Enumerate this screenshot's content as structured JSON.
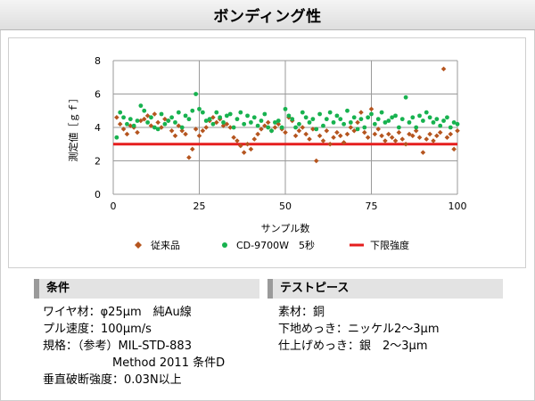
{
  "title": "ボンディング性",
  "chart_data": {
    "type": "scatter",
    "xlabel": "サンプル数",
    "ylabel": "測定値［ｇｆ］",
    "xlim": [
      0,
      100
    ],
    "ylim": [
      0,
      8
    ],
    "xticks": [
      0,
      25,
      50,
      75,
      100
    ],
    "yticks": [
      0,
      2,
      4,
      6,
      8
    ],
    "grid": true,
    "legend_position": "bottom",
    "series": [
      {
        "name": "従来品",
        "color": "#b5551f",
        "marker": "diamond",
        "x": [
          1,
          2,
          3,
          4,
          5,
          6,
          7,
          8,
          9,
          10,
          11,
          12,
          13,
          14,
          15,
          16,
          17,
          18,
          19,
          20,
          21,
          22,
          23,
          24,
          25,
          26,
          27,
          28,
          29,
          30,
          31,
          32,
          33,
          34,
          35,
          36,
          37,
          38,
          39,
          40,
          41,
          42,
          43,
          44,
          45,
          46,
          47,
          48,
          49,
          50,
          51,
          52,
          53,
          54,
          55,
          56,
          57,
          58,
          59,
          60,
          61,
          62,
          63,
          64,
          65,
          66,
          67,
          68,
          69,
          70,
          71,
          72,
          73,
          74,
          75,
          76,
          77,
          78,
          79,
          80,
          81,
          82,
          83,
          84,
          85,
          86,
          87,
          88,
          89,
          90,
          91,
          92,
          93,
          94,
          95,
          96,
          97,
          98,
          99,
          100
        ],
        "y": [
          4.6,
          4.2,
          3.9,
          3.6,
          4.1,
          4.0,
          3.7,
          4.4,
          4.5,
          4.7,
          4.1,
          4.8,
          4.3,
          4.0,
          4.5,
          4.4,
          3.8,
          3.5,
          4.1,
          3.8,
          3.6,
          2.2,
          2.7,
          3.9,
          3.5,
          3.8,
          4.0,
          4.4,
          4.6,
          4.3,
          4.5,
          4.1,
          4.2,
          4.0,
          3.4,
          3.2,
          2.9,
          2.5,
          3.0,
          2.7,
          3.3,
          3.6,
          3.9,
          4.1,
          4.3,
          3.8,
          4.0,
          4.2,
          3.9,
          3.7,
          4.6,
          4.4,
          3.5,
          3.8,
          4.0,
          3.6,
          3.3,
          3.9,
          2.0,
          3.5,
          3.2,
          3.8,
          3.0,
          3.4,
          3.7,
          3.5,
          3.1,
          3.6,
          4.0,
          3.8,
          4.3,
          4.9,
          3.7,
          3.4,
          5.1,
          3.6,
          3.9,
          3.5,
          3.2,
          3.6,
          3.4,
          3.2,
          3.7,
          3.3,
          3.0,
          3.6,
          3.5,
          3.8,
          3.4,
          2.5,
          3.3,
          3.6,
          3.2,
          3.5,
          3.7,
          7.5,
          3.4,
          3.6,
          2.7,
          3.8
        ]
      },
      {
        "name": "CD-9700W　5秒",
        "color": "#17b24f",
        "marker": "circle",
        "x": [
          1,
          2,
          3,
          4,
          5,
          6,
          7,
          8,
          9,
          10,
          11,
          12,
          13,
          14,
          15,
          16,
          17,
          18,
          19,
          20,
          21,
          22,
          23,
          24,
          25,
          26,
          27,
          28,
          29,
          30,
          31,
          32,
          33,
          34,
          35,
          36,
          37,
          38,
          39,
          40,
          41,
          42,
          43,
          44,
          45,
          46,
          47,
          48,
          49,
          50,
          51,
          52,
          53,
          54,
          55,
          56,
          57,
          58,
          59,
          60,
          61,
          62,
          63,
          64,
          65,
          66,
          67,
          68,
          69,
          70,
          71,
          72,
          73,
          74,
          75,
          76,
          77,
          78,
          79,
          80,
          81,
          82,
          83,
          84,
          85,
          86,
          87,
          88,
          89,
          90,
          91,
          92,
          93,
          94,
          95,
          96,
          97,
          98,
          99,
          100
        ],
        "y": [
          3.4,
          4.9,
          4.6,
          4.2,
          4.5,
          4.1,
          4.4,
          5.3,
          5.0,
          4.3,
          4.6,
          4.0,
          3.9,
          4.8,
          4.2,
          4.4,
          4.6,
          4.3,
          4.9,
          4.0,
          4.7,
          4.5,
          5.0,
          6.0,
          5.1,
          4.9,
          4.4,
          4.5,
          4.2,
          4.9,
          4.6,
          4.3,
          4.7,
          4.8,
          4.0,
          4.5,
          4.9,
          4.2,
          4.7,
          4.3,
          4.6,
          4.1,
          4.4,
          4.8,
          4.0,
          3.8,
          4.3,
          4.4,
          4.0,
          5.1,
          4.7,
          4.5,
          4.0,
          4.2,
          4.9,
          4.6,
          4.3,
          4.5,
          3.9,
          4.8,
          4.1,
          4.5,
          4.9,
          4.3,
          4.7,
          4.5,
          4.2,
          5.0,
          4.3,
          4.6,
          3.9,
          4.5,
          4.0,
          4.6,
          4.8,
          4.2,
          4.5,
          4.9,
          4.3,
          4.4,
          4.6,
          4.7,
          4.0,
          4.5,
          5.8,
          4.3,
          4.6,
          4.0,
          4.7,
          4.4,
          4.9,
          4.6,
          4.3,
          4.5,
          4.1,
          4.4,
          4.6,
          4.0,
          4.3,
          4.2
        ]
      }
    ],
    "reference_lines": [
      {
        "name": "下限強度",
        "y": 3.0,
        "color": "#e51e1e"
      }
    ]
  },
  "panels": {
    "conditions": {
      "heading": "条件",
      "lines": [
        "ワイヤ材：φ25μm　純Au線",
        "プル速度：100μm/s",
        "規格：（参考）MIL-STD-883",
        "　　　　　　Method 2011 条件D",
        "垂直破断強度：0.03N以上"
      ]
    },
    "test_piece": {
      "heading": "テストピース",
      "lines": [
        "素材：銅",
        "下地めっき：ニッケル2～3μm",
        "仕上げめっき：銀　2～3μm"
      ]
    }
  }
}
